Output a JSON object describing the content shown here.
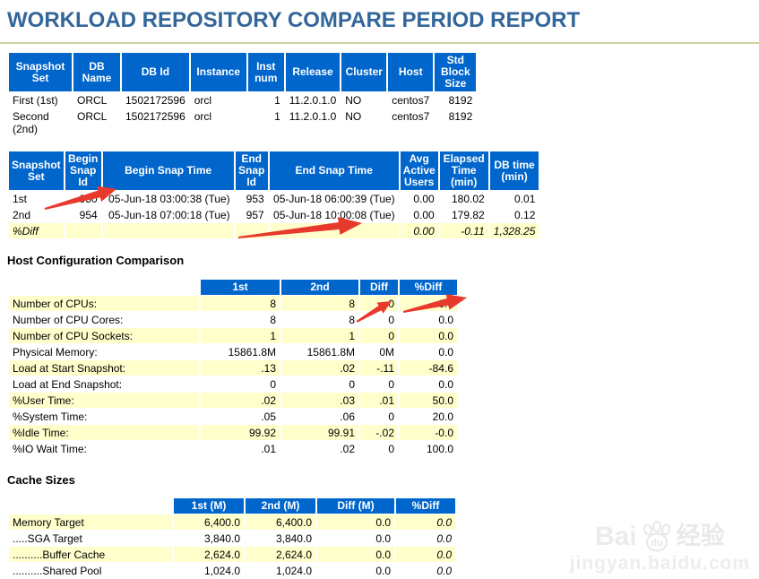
{
  "page_title": "WORKLOAD REPOSITORY COMPARE PERIOD REPORT",
  "db_info_table": {
    "headers": [
      "Snapshot Set",
      "DB Name",
      "DB Id",
      "Instance",
      "Inst num",
      "Release",
      "Cluster",
      "Host",
      "Std Block Size"
    ],
    "rows": [
      [
        "First (1st)",
        "ORCL",
        "1502172596",
        "orcl",
        "1",
        "11.2.0.1.0",
        "NO",
        "centos7",
        "8192"
      ],
      [
        "Second (2nd)",
        "ORCL",
        "1502172596",
        "orcl",
        "1",
        "11.2.0.1.0",
        "NO",
        "centos7",
        "8192"
      ]
    ]
  },
  "snapshot_table": {
    "headers": [
      "Snapshot Set",
      "Begin Snap Id",
      "Begin Snap Time",
      "End Snap Id",
      "End Snap Time",
      "Avg Active Users",
      "Elapsed Time (min)",
      "DB time (min)"
    ],
    "rows": [
      [
        "1st",
        "950",
        "05-Jun-18 03:00:38 (Tue)",
        "953",
        "05-Jun-18 06:00:39 (Tue)",
        "0.00",
        "180.02",
        "0.01"
      ],
      [
        "2nd",
        "954",
        "05-Jun-18 07:00:18 (Tue)",
        "957",
        "05-Jun-18 10:00:08 (Tue)",
        "0.00",
        "179.82",
        "0.12"
      ],
      [
        "%Diff",
        "",
        "",
        "",
        "",
        "0.00",
        "-0.11",
        "1,328.25"
      ]
    ]
  },
  "host_config": {
    "heading": "Host Configuration Comparison",
    "headers": [
      "1st",
      "2nd",
      "Diff",
      "%Diff"
    ],
    "rows": [
      [
        "Number of CPUs:",
        "8",
        "8",
        "0",
        "0.0"
      ],
      [
        "Number of CPU Cores:",
        "8",
        "8",
        "0",
        "0.0"
      ],
      [
        "Number of CPU Sockets:",
        "1",
        "1",
        "0",
        "0.0"
      ],
      [
        "Physical Memory:",
        "15861.8M",
        "15861.8M",
        "0M",
        "0.0"
      ],
      [
        "Load at Start Snapshot:",
        ".13",
        ".02",
        "-.11",
        "-84.6"
      ],
      [
        "Load at End Snapshot:",
        "0",
        "0",
        "0",
        "0.0"
      ],
      [
        "%User Time:",
        ".02",
        ".03",
        ".01",
        "50.0"
      ],
      [
        "%System Time:",
        ".05",
        ".06",
        "0",
        "20.0"
      ],
      [
        "%Idle Time:",
        "99.92",
        "99.91",
        "-.02",
        "-0.0"
      ],
      [
        "%IO Wait Time:",
        ".01",
        ".02",
        "0",
        "100.0"
      ]
    ]
  },
  "cache_sizes": {
    "heading": "Cache Sizes",
    "headers": [
      "1st (M)",
      "2nd (M)",
      "Diff (M)",
      "%Diff"
    ],
    "rows": [
      [
        "Memory Target",
        "6,400.0",
        "6,400.0",
        "0.0",
        "0.0"
      ],
      [
        ".....SGA Target",
        "3,840.0",
        "3,840.0",
        "0.0",
        "0.0"
      ],
      [
        "..........Buffer Cache",
        "2,624.0",
        "2,624.0",
        "0.0",
        "0.0"
      ],
      [
        "..........Shared Pool",
        "1,024.0",
        "1,024.0",
        "0.0",
        "0.0"
      ]
    ]
  },
  "watermark": {
    "brand": "Bai",
    "brand2": "du",
    "suffix": "经验",
    "url": "jingyan.baidu.com"
  },
  "colors": {
    "header_bg": "#0066CC",
    "row_highlight": "#FFFFCC",
    "title_blue": "#336699",
    "rule_olive": "#CFCFA0",
    "arrow_red": "#E8392D"
  }
}
